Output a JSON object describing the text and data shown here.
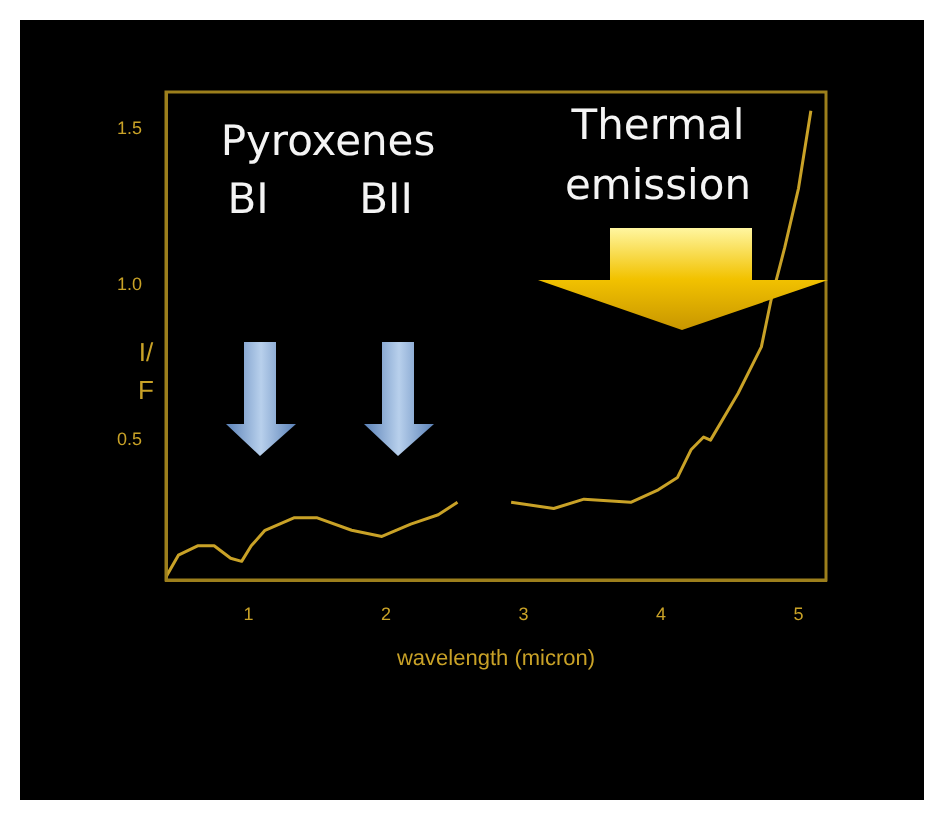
{
  "chart_data": {
    "type": "line",
    "xlabel": "wavelength (micron)",
    "ylabel": "I/ F",
    "annotations": [
      "Pyroxenes",
      "BI",
      "BII",
      "Thermal emission"
    ],
    "x": [
      0.4,
      0.49,
      0.63,
      0.75,
      0.87,
      0.95,
      1.02,
      1.12,
      1.33,
      1.5,
      1.75,
      1.97,
      2.18,
      2.38,
      2.52,
      2.7,
      2.91,
      3.22,
      3.44,
      3.78,
      3.98,
      4.12,
      4.22,
      4.31,
      4.36,
      4.56,
      4.73,
      4.8,
      4.9,
      5.0,
      5.09
    ],
    "series": [
      {
        "color": "#c9a227",
        "values": [
          0.06,
          0.13,
          0.16,
          0.16,
          0.12,
          0.11,
          0.16,
          0.21,
          0.25,
          0.25,
          0.21,
          0.19,
          0.23,
          0.26,
          0.3,
          null,
          0.3,
          0.28,
          0.31,
          0.3,
          0.34,
          0.38,
          0.47,
          0.51,
          0.5,
          0.65,
          0.8,
          0.95,
          1.12,
          1.31,
          1.56
        ]
      }
    ],
    "xlim": [
      0.4,
      5.2
    ],
    "xticks": [
      1,
      2,
      3,
      4,
      5
    ],
    "ylim": [
      0.05,
      1.62
    ],
    "yticks": [
      0.5,
      {
        "value": 1,
        "label": "1.0"
      },
      1.5
    ],
    "grid": false,
    "marker": "none"
  }
}
